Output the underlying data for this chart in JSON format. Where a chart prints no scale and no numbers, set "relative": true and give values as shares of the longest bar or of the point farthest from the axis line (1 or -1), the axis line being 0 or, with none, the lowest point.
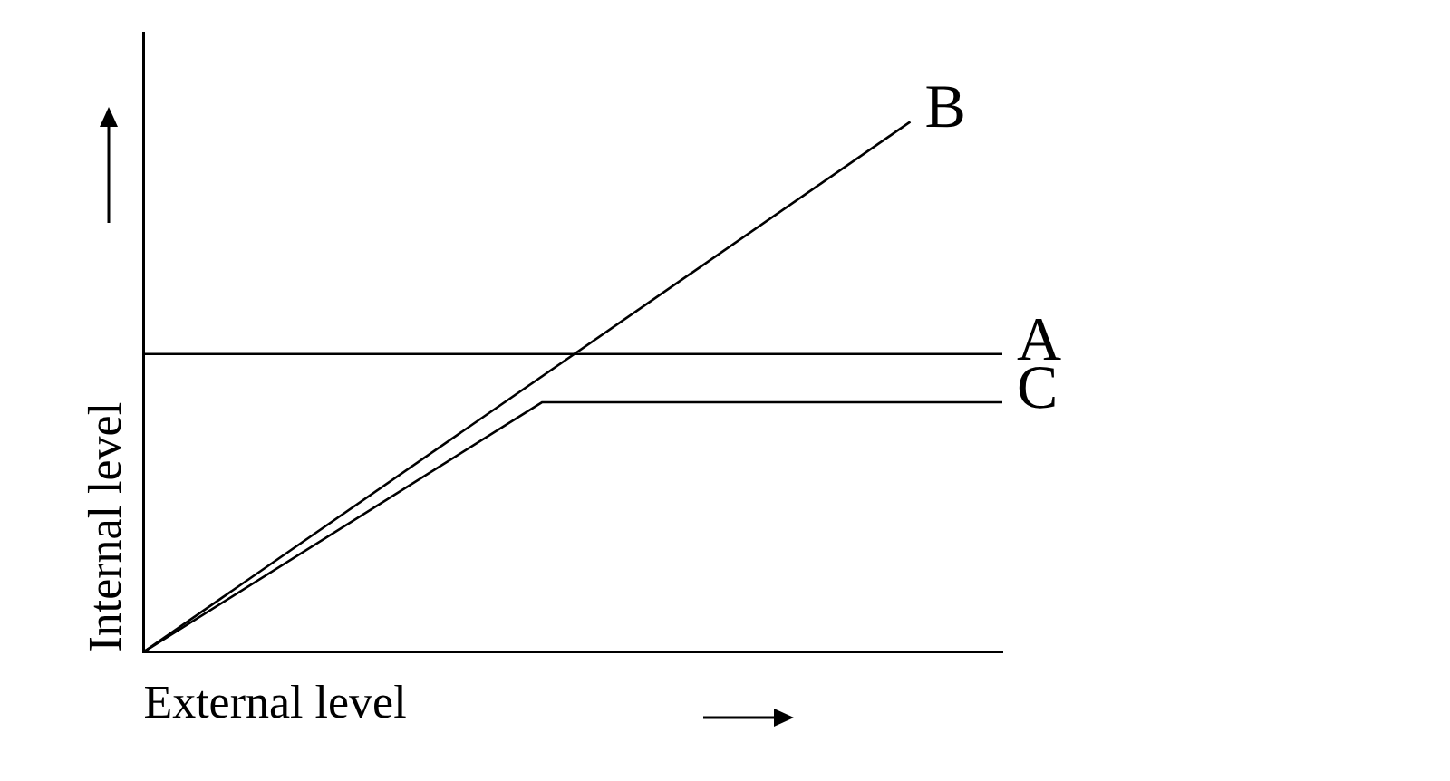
{
  "chart_data": {
    "type": "line",
    "relative": true,
    "xlabel": "External level",
    "ylabel": "Internal level",
    "categories": [
      null,
      null,
      null,
      null,
      null,
      null,
      null,
      null,
      null,
      null,
      null,
      null,
      null,
      null,
      null,
      null,
      null,
      null,
      null,
      null,
      null,
      null,
      null,
      null,
      null,
      null,
      null,
      null,
      null
    ],
    "tick_labels": false,
    "grid": false,
    "legend": false,
    "marker": "none",
    "line_style": "solid",
    "series": [
      {
        "name": "B",
        "color": "#000000",
        "values": [
          0,
          null,
          null,
          null,
          null,
          null,
          null,
          null,
          null,
          null,
          null,
          null,
          null,
          null,
          null,
          null,
          null,
          null,
          null,
          null,
          null,
          null,
          null,
          null,
          null,
          1,
          null,
          null,
          null
        ]
      },
      {
        "name": "A",
        "color": "#000000",
        "values": [
          0.562,
          null,
          null,
          null,
          null,
          null,
          null,
          null,
          null,
          null,
          null,
          null,
          null,
          null,
          null,
          null,
          null,
          null,
          null,
          null,
          null,
          null,
          null,
          null,
          null,
          null,
          null,
          null,
          0.562
        ]
      },
      {
        "name": "C",
        "color": "#000000",
        "values": [
          0,
          null,
          null,
          null,
          null,
          null,
          null,
          null,
          null,
          null,
          null,
          null,
          null,
          0.471,
          null,
          null,
          null,
          null,
          null,
          null,
          null,
          null,
          null,
          null,
          null,
          null,
          null,
          null,
          0.471
        ]
      }
    ]
  }
}
